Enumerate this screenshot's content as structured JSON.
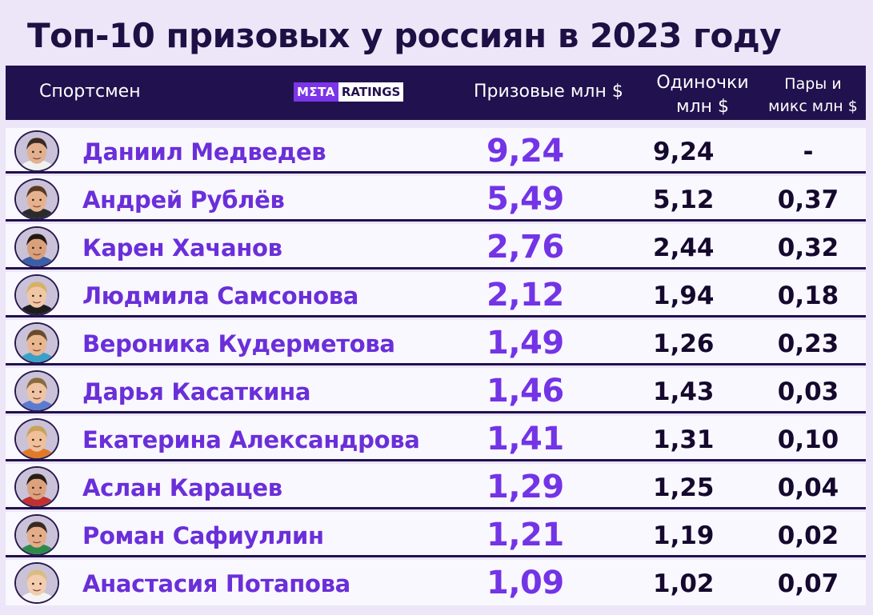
{
  "title": "Топ-10 призовых у россиян в 2023 году",
  "header": {
    "athlete": "Спортсмен",
    "logo_left": "MΣTA",
    "logo_right": "RATINGS",
    "prize": "Призовые млн $",
    "singles_line1": "Одиночки",
    "singles_line2": "млн $",
    "doubles_line1": "Пары и",
    "doubles_line2": "микс млн $"
  },
  "colors": {
    "background": "#ece6f8",
    "header": "#21114e",
    "name": "#6a2fd9",
    "prize": "#7334e6",
    "text": "#15092e"
  },
  "chart_data": {
    "type": "table",
    "title": "Топ-10 призовых у россиян в 2023 году",
    "columns": [
      "Спортсмен",
      "Призовые млн $",
      "Одиночки млн $",
      "Пары и микс млн $"
    ],
    "rows": [
      {
        "name": "Даниил Медведев",
        "prize": "9,24",
        "singles": "9,24",
        "doubles": "-",
        "avatar_icon": "player-avatar-icon",
        "skin": "#e2b08f",
        "hair": "#3a2a22",
        "shirt": "#f1f1f1"
      },
      {
        "name": "Андрей Рублёв",
        "prize": "5,49",
        "singles": "5,12",
        "doubles": "0,37",
        "avatar_icon": "player-avatar-icon",
        "skin": "#e6b28e",
        "hair": "#5a3a22",
        "shirt": "#2b2b2b"
      },
      {
        "name": "Карен Хачанов",
        "prize": "2,76",
        "singles": "2,44",
        "doubles": "0,32",
        "avatar_icon": "player-avatar-icon",
        "skin": "#d9a07c",
        "hair": "#231812",
        "shirt": "#3b5ea8"
      },
      {
        "name": "Людмила Самсонова",
        "prize": "2,12",
        "singles": "1,94",
        "doubles": "0,18",
        "avatar_icon": "player-avatar-icon",
        "skin": "#f0c7a6",
        "hair": "#d7b265",
        "shirt": "#1c1c1c"
      },
      {
        "name": "Вероника Кудерметова",
        "prize": "1,49",
        "singles": "1,26",
        "doubles": "0,23",
        "avatar_icon": "player-avatar-icon",
        "skin": "#e8b790",
        "hair": "#6b4a2a",
        "shirt": "#3aa0c8"
      },
      {
        "name": "Дарья Касаткина",
        "prize": "1,46",
        "singles": "1,43",
        "doubles": "0,03",
        "avatar_icon": "player-avatar-icon",
        "skin": "#efc4a4",
        "hair": "#8a6a3e",
        "shirt": "#5a7bd0"
      },
      {
        "name": "Екатерина Александрова",
        "prize": "1,41",
        "singles": "1,31",
        "doubles": "0,10",
        "avatar_icon": "player-avatar-icon",
        "skin": "#f0c09a",
        "hair": "#c9a15a",
        "shirt": "#e07a2a"
      },
      {
        "name": "Аслан Карацев",
        "prize": "1,29",
        "singles": "1,25",
        "doubles": "0,04",
        "avatar_icon": "player-avatar-icon",
        "skin": "#dca27e",
        "hair": "#2a1d16",
        "shirt": "#c03030"
      },
      {
        "name": "Роман Сафиуллин",
        "prize": "1,21",
        "singles": "1,19",
        "doubles": "0,02",
        "avatar_icon": "player-avatar-icon",
        "skin": "#e2ad88",
        "hair": "#3a2a22",
        "shirt": "#2e8a4a"
      },
      {
        "name": "Анастасия Потапова",
        "prize": "1,09",
        "singles": "1,02",
        "doubles": "0,07",
        "avatar_icon": "player-avatar-icon",
        "skin": "#f2cdb0",
        "hair": "#d9bd80",
        "shirt": "#f4f4f4"
      }
    ]
  }
}
